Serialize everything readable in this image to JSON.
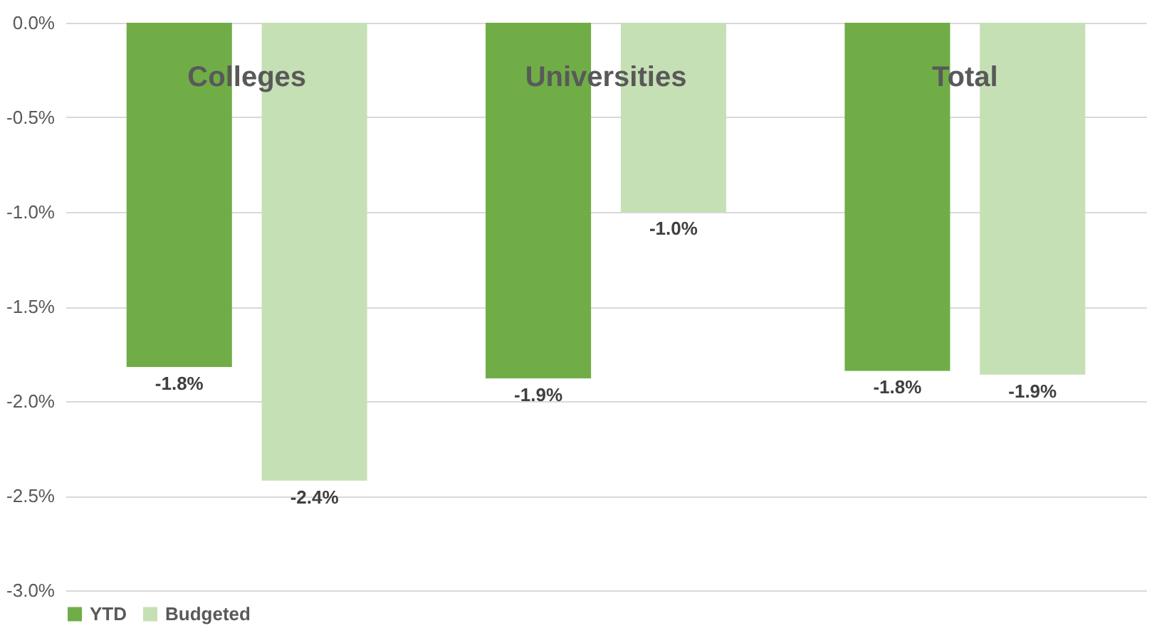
{
  "chart_data": {
    "type": "bar",
    "categories": [
      "Colleges",
      "Universities",
      "Total"
    ],
    "series": [
      {
        "name": "YTD",
        "color": "#70ad47",
        "values": [
          -1.82,
          -1.88,
          -1.84
        ],
        "value_labels": [
          "-1.8%",
          "-1.9%",
          "-1.8%"
        ]
      },
      {
        "name": "Budgeted",
        "color": "#c5e0b4",
        "values": [
          -2.42,
          -1.0,
          -1.86
        ],
        "value_labels": [
          "-2.4%",
          "-1.0%",
          "-1.9%"
        ]
      }
    ],
    "ylim": [
      -3.0,
      0.0
    ],
    "yticks": [
      {
        "value": -3.0,
        "label": "-3.0%"
      },
      {
        "value": -2.5,
        "label": "-2.5%"
      },
      {
        "value": -2.0,
        "label": "-2.0%"
      },
      {
        "value": -1.5,
        "label": "-1.5%"
      },
      {
        "value": -1.0,
        "label": "-1.0%"
      },
      {
        "value": -0.5,
        "label": "-0.5%"
      },
      {
        "value": 0.0,
        "label": "0.0%"
      }
    ],
    "grid": "y",
    "legend": "bottom"
  }
}
